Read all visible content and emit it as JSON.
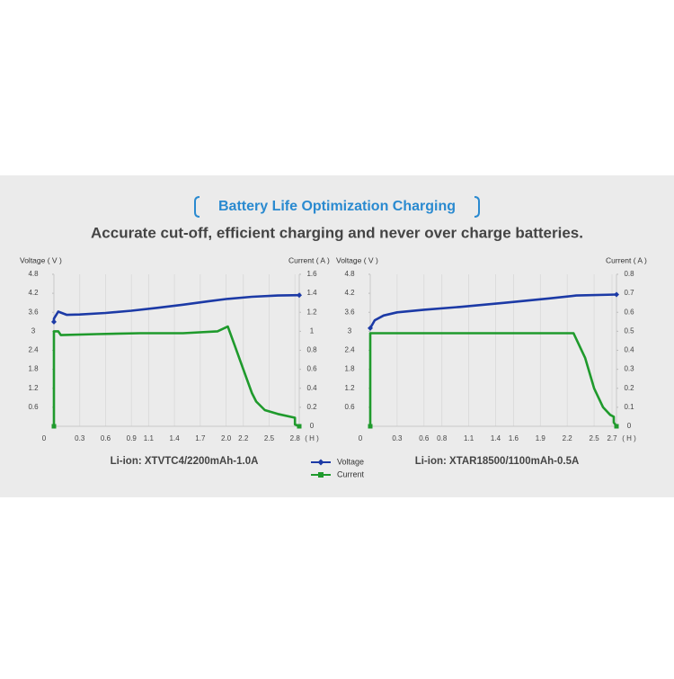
{
  "header": {
    "title": "Battery Life Optimization Charging",
    "subtitle": "Accurate cut-off, efficient charging and never over charge batteries."
  },
  "chart_data": [
    {
      "type": "line",
      "title": "Li-ion: XTVTC4/2200mAh-1.0A",
      "y_label": "Voltage ( V )",
      "y2_label": "Current ( A )",
      "x_label": "( H )",
      "xlim": [
        0,
        2.85
      ],
      "xticks": [
        0,
        0.3,
        0.6,
        0.9,
        1.1,
        1.4,
        1.7,
        {
          "value": 2,
          "label": "2.0"
        },
        2.2,
        2.5,
        2.8
      ],
      "ylim": [
        0,
        4.8
      ],
      "yticks": [
        0.6,
        1.2,
        1.8,
        2.4,
        3,
        3.6,
        4.2,
        4.8
      ],
      "y2lim": [
        0,
        1.6
      ],
      "y2ticks": [
        0,
        0.2,
        0.4,
        0.6,
        0.8,
        1,
        1.2,
        1.4,
        1.6
      ],
      "grid": true,
      "series": [
        {
          "name": "Voltage",
          "color": "#1c3aa6",
          "marker": "diamond",
          "x": [
            0,
            0,
            0.05,
            0.15,
            0.3,
            0.6,
            0.9,
            1.2,
            1.5,
            1.8,
            2.0,
            2.3,
            2.6,
            2.85
          ],
          "values": [
            3.3,
            3.4,
            3.62,
            3.52,
            3.53,
            3.58,
            3.65,
            3.74,
            3.84,
            3.95,
            4.02,
            4.09,
            4.13,
            4.14
          ]
        },
        {
          "name": "Current",
          "color": "#1f9a2c",
          "marker": "square",
          "axis": "y2",
          "x": [
            0,
            0,
            0.05,
            0.08,
            0.5,
            1.0,
            1.5,
            1.9,
            2.02,
            2.1,
            2.2,
            2.3,
            2.35,
            2.45,
            2.6,
            2.8,
            2.8,
            2.85
          ],
          "values": [
            0,
            1.0,
            1.0,
            0.96,
            0.97,
            0.98,
            0.98,
            1.0,
            1.05,
            0.85,
            0.6,
            0.35,
            0.26,
            0.17,
            0.13,
            0.09,
            0.02,
            0
          ]
        }
      ]
    },
    {
      "type": "line",
      "title": "Li-ion: XTAR18500/1100mAh-0.5A",
      "y_label": "Voltage ( V )",
      "y2_label": "Current ( A )",
      "x_label": "( H )",
      "xlim": [
        0,
        2.75
      ],
      "xticks": [
        0,
        0.3,
        0.6,
        0.8,
        1.1,
        1.4,
        1.6,
        1.9,
        2.2,
        2.5,
        2.7
      ],
      "ylim": [
        0,
        4.8
      ],
      "yticks": [
        0.6,
        1.2,
        1.8,
        2.4,
        3,
        3.6,
        4.2,
        4.8
      ],
      "y2lim": [
        0,
        0.8
      ],
      "y2ticks": [
        0,
        0.1,
        0.2,
        0.3,
        0.4,
        0.5,
        0.6,
        0.7,
        0.8
      ],
      "grid": true,
      "series": [
        {
          "name": "Voltage",
          "color": "#1c3aa6",
          "marker": "diamond",
          "x": [
            0,
            0.05,
            0.15,
            0.3,
            0.6,
            1.0,
            1.5,
            2.0,
            2.3,
            2.75
          ],
          "values": [
            3.1,
            3.35,
            3.5,
            3.6,
            3.68,
            3.77,
            3.9,
            4.04,
            4.13,
            4.16
          ]
        },
        {
          "name": "Current",
          "color": "#1f9a2c",
          "marker": "square",
          "axis": "y2",
          "x": [
            0,
            0,
            2.27,
            2.4,
            2.5,
            2.6,
            2.68,
            2.72,
            2.72,
            2.75
          ],
          "values": [
            0,
            0.49,
            0.49,
            0.36,
            0.2,
            0.1,
            0.06,
            0.05,
            0.02,
            0
          ]
        }
      ]
    }
  ]
}
